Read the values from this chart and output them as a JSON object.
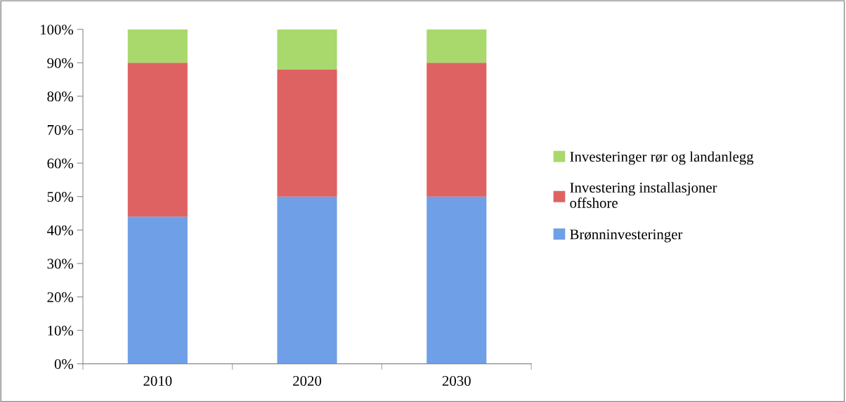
{
  "chart_data": {
    "type": "bar",
    "stacked": true,
    "categories": [
      "2010",
      "2020",
      "2030"
    ],
    "series": [
      {
        "name": "Brønninvesteringer",
        "color": "#6f9fe6",
        "values": [
          44,
          50,
          50
        ]
      },
      {
        "name": "Investering installasjoner\noffshore",
        "color": "#df6262",
        "values": [
          46,
          38,
          40
        ]
      },
      {
        "name": "Investeringer rør og landanlegg",
        "color": "#a9d86c",
        "values": [
          10,
          12,
          10
        ]
      }
    ],
    "ylim": [
      0,
      100
    ],
    "yticks": [
      {
        "value": 0,
        "label": "0%"
      },
      {
        "value": 10,
        "label": "10%"
      },
      {
        "value": 20,
        "label": "20%"
      },
      {
        "value": 30,
        "label": "30%"
      },
      {
        "value": 40,
        "label": "40%"
      },
      {
        "value": 50,
        "label": "50%"
      },
      {
        "value": 60,
        "label": "60%"
      },
      {
        "value": 70,
        "label": "70%"
      },
      {
        "value": 80,
        "label": "80%"
      },
      {
        "value": 90,
        "label": "90%"
      },
      {
        "value": 100,
        "label": "100%"
      }
    ],
    "grid": false,
    "legend": "right"
  }
}
